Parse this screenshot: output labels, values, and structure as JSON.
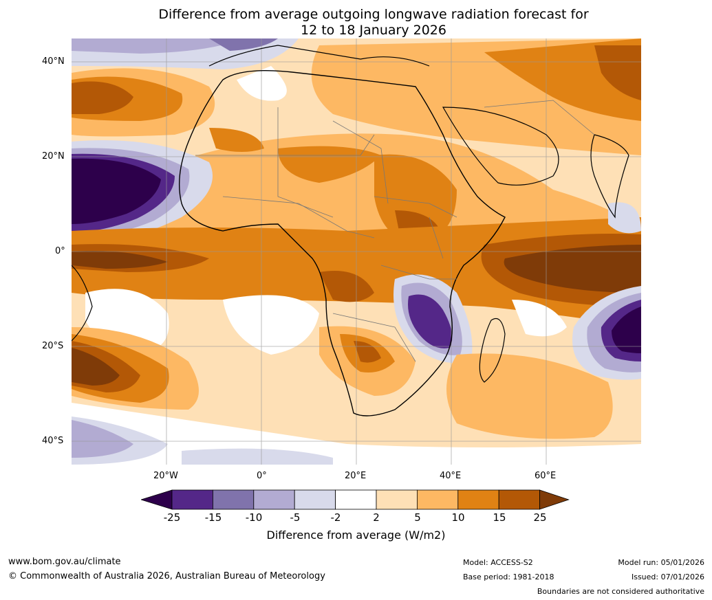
{
  "title": {
    "line1": "Difference from average outgoing longwave radiation forecast for",
    "line2": "12 to 18 January 2026"
  },
  "axes": {
    "y_labels": [
      "40°N",
      "20°N",
      "0°",
      "20°S",
      "40°S"
    ],
    "x_labels": [
      "20°W",
      "0°",
      "20°E",
      "40°E",
      "60°E"
    ]
  },
  "legend": {
    "title": "Difference from average (W/m2)",
    "ticks": [
      "-25",
      "-15",
      "-10",
      "-5",
      "-2",
      "2",
      "5",
      "10",
      "15",
      "25"
    ],
    "colors": [
      "#2d004b",
      "#542788",
      "#8073ac",
      "#b2abd2",
      "#d8daeb",
      "#ffffff",
      "#fee0b6",
      "#fdb863",
      "#e08214",
      "#b35806",
      "#7f3b08"
    ]
  },
  "footer": {
    "website": "www.bom.gov.au/climate",
    "copyright": "© Commonwealth of Australia 2026, Australian Bureau of Meteorology",
    "model": "Model: ACCESS-S2",
    "base_period": "Base period: 1981-2018",
    "model_run": "Model run: 05/01/2026",
    "issued": "Issued: 07/01/2026",
    "disclaimer": "Boundaries are not considered authoritative"
  }
}
